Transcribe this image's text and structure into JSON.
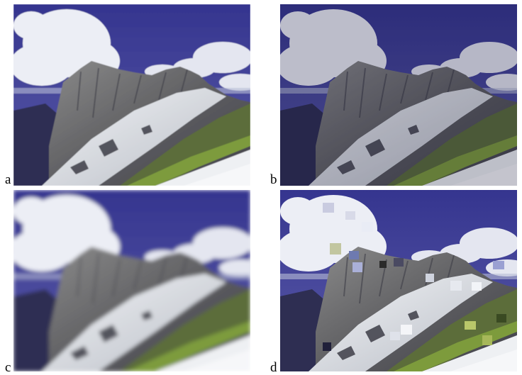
{
  "panels": [
    {
      "id": "a",
      "label": "a",
      "variant": "original"
    },
    {
      "id": "b",
      "label": "b",
      "variant": "darkened"
    },
    {
      "id": "c",
      "label": "c",
      "variant": "blurred"
    },
    {
      "id": "d",
      "label": "d",
      "variant": "blocky-artifacts"
    }
  ],
  "colors": {
    "sky": "#3a3a9c",
    "cloud": "#e6e8f2",
    "rock": "#6b6b6e",
    "snow": "#e8ecef",
    "grass": "#6f8a3a",
    "shadow": "#2c2c50"
  }
}
